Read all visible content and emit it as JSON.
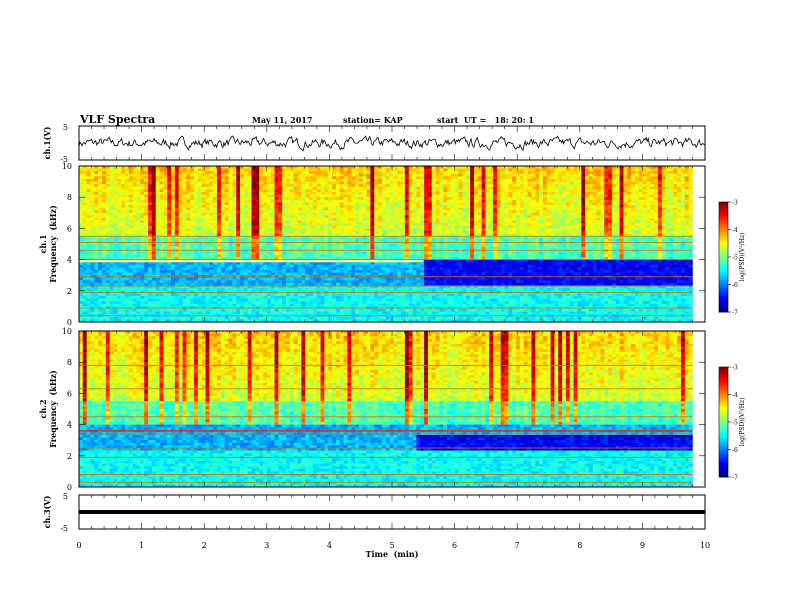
{
  "header": {
    "title": "VLF Spectra",
    "date": "May 11, 2017",
    "station": "station= KAP",
    "start_ut": "start  UT =   18: 20: 1"
  },
  "chart_data": [
    {
      "type": "line",
      "panel": "ch1-waveform",
      "ylabel": "ch.1(V)",
      "yticks": [
        "5",
        "-5"
      ],
      "ylim": [
        -5,
        5
      ],
      "xlim": [
        0,
        10
      ],
      "x_unit": "min"
    },
    {
      "type": "heatmap",
      "panel": "ch1-spectrogram",
      "ylabel": "ch.1 Frequency (kHz)",
      "ylabel_line1": "ch.1",
      "ylabel_line2": "Frequency  (kHz)",
      "yticks": [
        "0",
        "2",
        "4",
        "6",
        "8",
        "10"
      ],
      "ylim": [
        0,
        10
      ],
      "xlim": [
        0,
        9.8
      ],
      "colorbar": {
        "label": "log(PSD)(V²/Hz)",
        "ticks": [
          "-3",
          "-4",
          "-5",
          "-6",
          "-7"
        ],
        "range": [
          -7,
          -3
        ]
      }
    },
    {
      "type": "heatmap",
      "panel": "ch2-spectrogram",
      "ylabel": "ch.2 Frequency (kHz)",
      "ylabel_line1": "ch.2",
      "ylabel_line2": "Frequency  (kHz)",
      "yticks": [
        "0",
        "2",
        "4",
        "6",
        "8",
        "10"
      ],
      "ylim": [
        0,
        10
      ],
      "xlim": [
        0,
        9.8
      ],
      "colorbar": {
        "label": "log(PSD)(V²/Hz)",
        "ticks": [
          "-3",
          "-4",
          "-5",
          "-6",
          "-7"
        ],
        "range": [
          -7,
          -3
        ]
      }
    },
    {
      "type": "line",
      "panel": "ch3-waveform",
      "ylabel": "ch.3(V)",
      "yticks": [
        "5",
        "-5"
      ],
      "ylim": [
        -5,
        5
      ],
      "xlim": [
        0,
        10
      ],
      "series_constant_value": 0,
      "xlabel": "Time  (min)",
      "xticks": [
        "0",
        "1",
        "2",
        "3",
        "4",
        "5",
        "6",
        "7",
        "8",
        "9",
        "10"
      ]
    }
  ],
  "colors": {
    "blue": "#0000ff",
    "cyan": "#00ffff",
    "green": "#00ff00",
    "yellow": "#ffff00",
    "red": "#ff0000"
  }
}
